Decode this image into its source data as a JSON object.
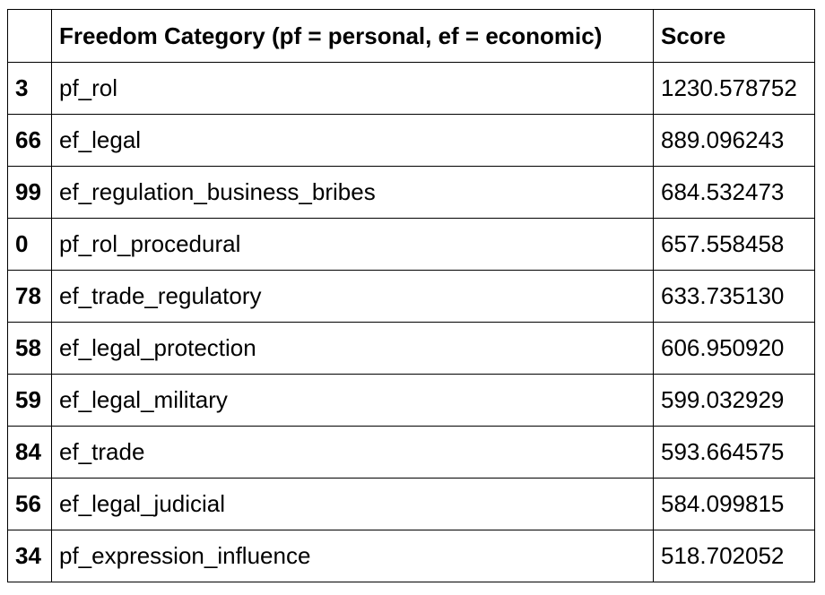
{
  "table": {
    "headers": {
      "index": "",
      "category": "Freedom Category (pf = personal, ef = economic)",
      "score": "Score"
    },
    "rows": [
      {
        "index": "3",
        "category": "pf_rol",
        "score": "1230.578752"
      },
      {
        "index": "66",
        "category": "ef_legal",
        "score": "889.096243"
      },
      {
        "index": "99",
        "category": "ef_regulation_business_bribes",
        "score": "684.532473"
      },
      {
        "index": "0",
        "category": "pf_rol_procedural",
        "score": "657.558458"
      },
      {
        "index": "78",
        "category": "ef_trade_regulatory",
        "score": "633.735130"
      },
      {
        "index": "58",
        "category": "ef_legal_protection",
        "score": "606.950920"
      },
      {
        "index": "59",
        "category": "ef_legal_military",
        "score": "599.032929"
      },
      {
        "index": "84",
        "category": "ef_trade",
        "score": "593.664575"
      },
      {
        "index": "56",
        "category": "ef_legal_judicial",
        "score": "584.099815"
      },
      {
        "index": "34",
        "category": "pf_expression_influence",
        "score": "518.702052"
      }
    ]
  }
}
